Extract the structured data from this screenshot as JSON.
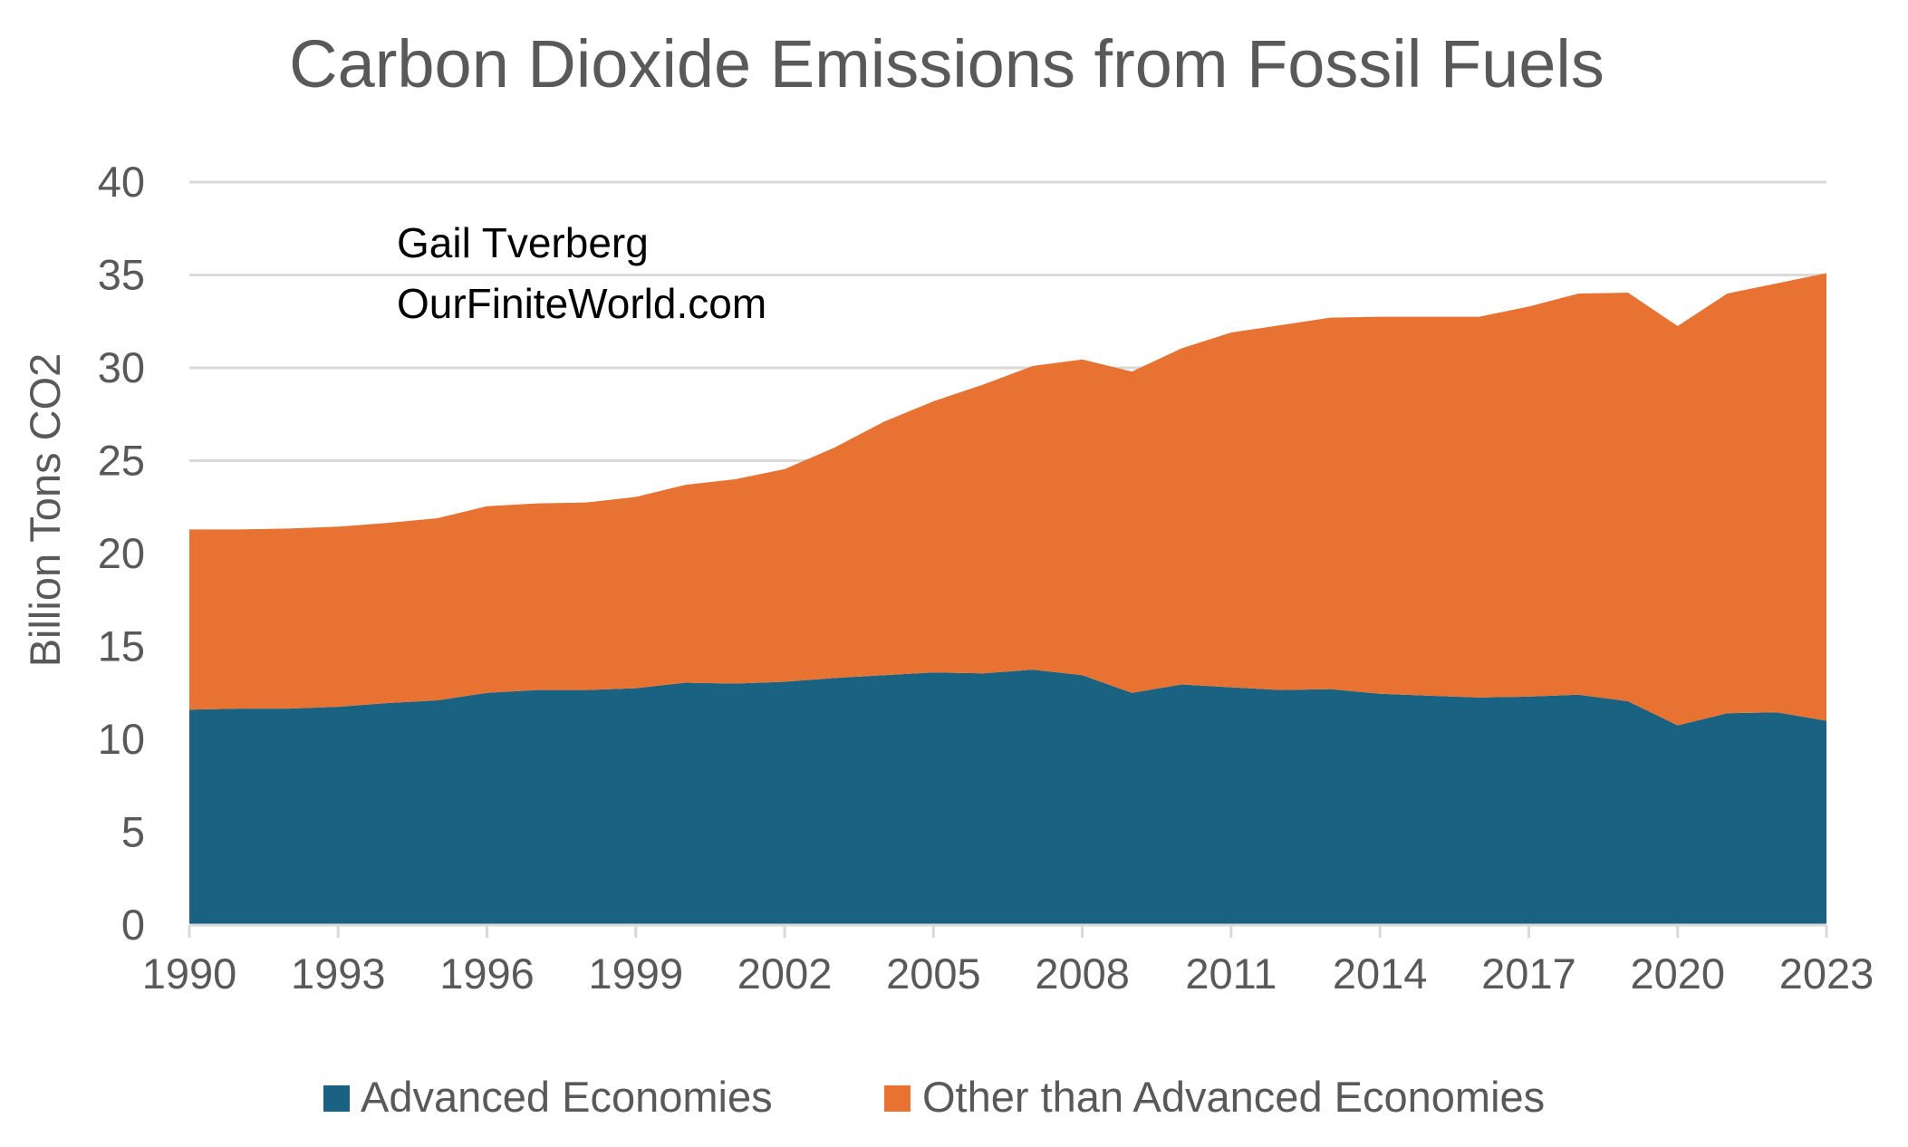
{
  "chart_data": {
    "type": "area",
    "stacked": true,
    "title": "Carbon Dioxide Emissions from Fossil Fuels",
    "ylabel": "Billion Tons CO2",
    "xlabel": "",
    "ylim": [
      0,
      40
    ],
    "yticks": [
      0,
      5,
      10,
      15,
      20,
      25,
      30,
      35,
      40
    ],
    "xticks": [
      1990,
      1993,
      1996,
      1999,
      2002,
      2005,
      2008,
      2011,
      2014,
      2017,
      2020,
      2023
    ],
    "grid": true,
    "legend_position": "bottom",
    "annotation_lines": [
      "Gail Tverberg",
      "OurFiniteWorld.com"
    ],
    "x": [
      1990,
      1991,
      1992,
      1993,
      1994,
      1995,
      1996,
      1997,
      1998,
      1999,
      2000,
      2001,
      2002,
      2003,
      2004,
      2005,
      2006,
      2007,
      2008,
      2009,
      2010,
      2011,
      2012,
      2013,
      2014,
      2015,
      2016,
      2017,
      2018,
      2019,
      2020,
      2021,
      2022,
      2023
    ],
    "series": [
      {
        "name": "Advanced Economies",
        "color": "#1a6282",
        "values": [
          11.6,
          11.65,
          11.65,
          11.75,
          11.95,
          12.1,
          12.5,
          12.65,
          12.65,
          12.75,
          13.05,
          13.0,
          13.1,
          13.3,
          13.45,
          13.6,
          13.55,
          13.75,
          13.45,
          12.5,
          12.95,
          12.8,
          12.65,
          12.7,
          12.45,
          12.35,
          12.25,
          12.3,
          12.4,
          12.05,
          10.75,
          11.4,
          11.45,
          11.0
        ]
      },
      {
        "name": "Other than Advanced Economies",
        "color": "#e87232",
        "values": [
          9.7,
          9.65,
          9.7,
          9.7,
          9.7,
          9.8,
          10.05,
          10.05,
          10.1,
          10.3,
          10.65,
          11.0,
          11.45,
          12.4,
          13.65,
          14.6,
          15.55,
          16.35,
          17.0,
          17.3,
          18.1,
          19.1,
          19.65,
          20.0,
          20.3,
          20.4,
          20.5,
          21.0,
          21.6,
          22.0,
          21.5,
          22.6,
          23.1,
          24.1
        ]
      }
    ]
  }
}
